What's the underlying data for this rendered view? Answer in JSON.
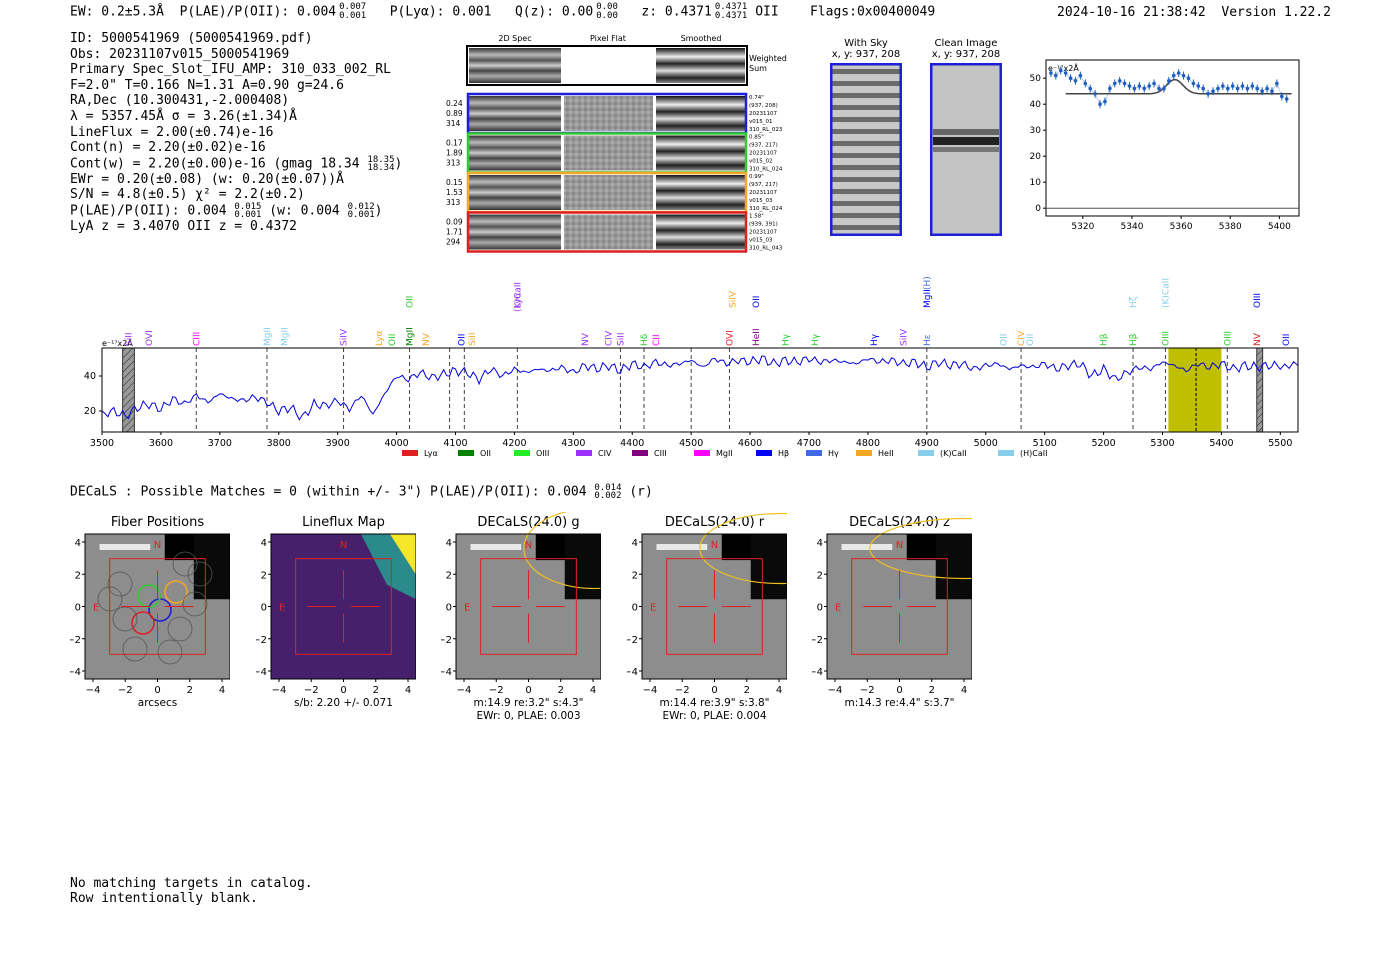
{
  "header": {
    "ew": "EW: 0.2±5.3Å",
    "plae": "P(LAE)/P(OII): 0.004",
    "plae_hi": "0.007",
    "plae_lo": "0.001",
    "plya": "P(Lyα): 0.001",
    "qz": "Q(z): 0.00",
    "qz_hi": "0.00",
    "qz_lo": "0.00",
    "z": "z: 0.4371",
    "z_hi": "0.4371",
    "z_lo": "0.4371",
    "z_line": "OII",
    "flags": "Flags:0x00400049",
    "timestamp": "2024-10-16 21:38:42",
    "version": "Version 1.22.2"
  },
  "info": {
    "l1": "ID: 5000541969 (5000541969.pdf)",
    "l2": "Obs: 20231107v015_5000541969",
    "l3": "Primary Spec_Slot_IFU_AMP: 310_033_002_RL",
    "l4": "F=2.0\"  T=0.166  N=1.31  A=0.90  g=24.6",
    "l5": "RA,Dec (10.300431,-2.000408)",
    "l6": "λ = 5357.45Å  σ = 3.26(±1.34)Å",
    "l7": "LineFlux = 2.00(±0.74)e-16",
    "l8": "Cont(n) = 2.20(±0.02)e-16",
    "l9": "Cont(w) = 2.20(±0.00)e-16 (gmag 18.34",
    "l9_hi": "18.35",
    "l9_lo": "18.34",
    "l9_end": ")",
    "l10": "EWr = 0.20(±0.08) (w: 0.20(±0.07))Å",
    "l11": "S/N = 4.8(±0.5)  χ² = 2.2(±0.2)",
    "l12a": "P(LAE)/P(OII): 0.004",
    "l12_hi": "0.015",
    "l12_lo": "0.001",
    "l12b": "(w: 0.004",
    "l12_hi2": "0.012",
    "l12_lo2": "0.001",
    "l12_end": ")",
    "l13": "LyA z = 3.4070  OII z = 0.4372"
  },
  "cutouts": {
    "col_2d": "2D Spec",
    "col_flat": "Pixel Flat",
    "col_smooth": "Smoothed",
    "weighted_sum": "Weighted",
    "weighted_sum2": "Sum",
    "rows": [
      {
        "color": "#1f1fd6",
        "stats": [
          "0.24",
          "0.89",
          "314"
        ],
        "meta": [
          "0.74\"",
          "(937, 208)",
          "20231107",
          "v015_01",
          "310_RL_023"
        ]
      },
      {
        "color": "#2ecc2e",
        "stats": [
          "0.17",
          "1.89",
          "313"
        ],
        "meta": [
          "0.85\"",
          "(937, 217)",
          "20231107",
          "v015_02",
          "310_RL_024"
        ]
      },
      {
        "color": "#f5a623",
        "stats": [
          "0.15",
          "1.53",
          "313"
        ],
        "meta": [
          "0.99\"",
          "(937, 217)",
          "20231107",
          "v015_03",
          "310_RL_024"
        ]
      },
      {
        "color": "#e02020",
        "stats": [
          "0.09",
          "1.71",
          "294"
        ],
        "meta": [
          "1.58\"",
          "(939, 391)",
          "20231107",
          "v015_03",
          "310_RL_043"
        ]
      }
    ]
  },
  "sky": {
    "with_sky": "With Sky",
    "with_sky_xy": "x, y: 937, 208",
    "clean": "Clean Image",
    "clean_xy": "x, y: 937, 208"
  },
  "chart_data": [
    {
      "type": "line",
      "name": "zoom-spectrum",
      "unit_label": "e⁻¹⁷x2Å",
      "xlim": [
        5305,
        5408
      ],
      "ylim": [
        -3,
        57
      ],
      "xticks": [
        5320,
        5340,
        5360,
        5380,
        5400
      ],
      "yticks": [
        0,
        10,
        20,
        30,
        40,
        50
      ],
      "x": [
        5307,
        5309,
        5311,
        5313,
        5315,
        5317,
        5319,
        5321,
        5323,
        5325,
        5327,
        5329,
        5331,
        5333,
        5335,
        5337,
        5339,
        5341,
        5343,
        5345,
        5347,
        5349,
        5351,
        5353,
        5355,
        5357,
        5359,
        5361,
        5363,
        5365,
        5367,
        5369,
        5371,
        5373,
        5375,
        5377,
        5379,
        5381,
        5383,
        5385,
        5387,
        5389,
        5391,
        5393,
        5395,
        5397,
        5399,
        5401,
        5403
      ],
      "y": [
        52,
        51,
        53,
        52,
        50,
        49,
        51,
        48,
        46,
        44,
        40,
        41,
        46,
        48,
        49,
        48,
        47,
        46,
        47,
        46,
        47,
        48,
        46,
        46,
        49,
        51,
        52,
        51,
        50,
        48,
        47,
        46,
        44,
        45,
        46,
        47,
        46,
        47,
        46,
        47,
        46,
        47,
        46,
        45,
        46,
        45,
        48,
        43,
        42
      ],
      "model_baseline": 44,
      "model_peak": 49.5,
      "model_center": 5357.45
    },
    {
      "type": "line",
      "name": "full-spectrum",
      "unit_label": "e⁻¹⁷x2Å",
      "xlim": [
        3500,
        5530
      ],
      "ylim": [
        8,
        56
      ],
      "xticks": [
        3500,
        3600,
        3700,
        3800,
        3900,
        4000,
        4100,
        4200,
        4300,
        4400,
        4500,
        4600,
        4700,
        4800,
        4900,
        5000,
        5100,
        5200,
        5300,
        5400,
        5500
      ],
      "yticks": [
        20,
        40
      ],
      "x": [
        3500,
        3520,
        3540,
        3560,
        3580,
        3600,
        3620,
        3640,
        3660,
        3680,
        3700,
        3720,
        3740,
        3760,
        3780,
        3800,
        3820,
        3840,
        3860,
        3880,
        3900,
        3920,
        3940,
        3960,
        3980,
        4000,
        4020,
        4040,
        4060,
        4080,
        4100,
        4120,
        4140,
        4160,
        4180,
        4200,
        4220,
        4240,
        4260,
        4280,
        4300,
        4320,
        4340,
        4360,
        4380,
        4400,
        4420,
        4440,
        4460,
        4480,
        4500,
        4520,
        4540,
        4560,
        4580,
        4600,
        4620,
        4640,
        4660,
        4680,
        4700,
        4720,
        4740,
        4760,
        4780,
        4800,
        4820,
        4840,
        4860,
        4880,
        4900,
        4920,
        4940,
        4960,
        4980,
        5000,
        5020,
        5040,
        5060,
        5080,
        5100,
        5120,
        5140,
        5160,
        5180,
        5200,
        5220,
        5240,
        5260,
        5280,
        5300,
        5320,
        5340,
        5360,
        5380,
        5400,
        5420,
        5440,
        5460,
        5480,
        5500,
        5530
      ],
      "y": [
        18,
        20,
        17,
        22,
        24,
        21,
        27,
        24,
        29,
        25,
        30,
        27,
        26,
        28,
        25,
        20,
        22,
        16,
        24,
        23,
        26,
        21,
        29,
        18,
        30,
        40,
        38,
        42,
        39,
        41,
        43,
        42,
        38,
        44,
        40,
        44,
        42,
        44,
        43,
        45,
        42,
        46,
        44,
        46,
        43,
        47,
        45,
        48,
        46,
        47,
        49,
        45,
        50,
        47,
        49,
        48,
        50,
        47,
        49,
        48,
        50,
        48,
        49,
        48,
        47,
        50,
        48,
        49,
        47,
        48,
        45,
        48,
        46,
        47,
        44,
        46,
        47,
        44,
        46,
        45,
        47,
        44,
        46,
        47,
        40,
        44,
        38,
        42,
        45,
        44,
        48,
        46,
        43,
        47,
        45,
        47,
        44,
        46,
        45,
        46,
        46,
        46
      ],
      "annotations": [
        {
          "x": 3545,
          "label": "SiII",
          "color": "#9b30ff",
          "side": "low"
        },
        {
          "x": 3580,
          "label": "OVI",
          "color": "#9b30ff",
          "side": "low"
        },
        {
          "x": 3660,
          "label": "CIII",
          "color": "#ff00ff",
          "side": "low"
        },
        {
          "x": 3780,
          "label": "MgII",
          "color": "#87ceeb",
          "side": "low"
        },
        {
          "x": 3810,
          "label": "MgII",
          "color": "#87ceeb",
          "side": "low"
        },
        {
          "x": 3910,
          "label": "SiIV",
          "color": "#9b30ff",
          "side": "low"
        },
        {
          "x": 3970,
          "label": "Lyα",
          "color": "#f5a623",
          "side": "low"
        },
        {
          "x": 3992,
          "label": "OII",
          "color": "#2ecc2e",
          "side": "low"
        },
        {
          "x": 4022,
          "label": "MgII",
          "color": "#008000",
          "side": "low"
        },
        {
          "x": 4022,
          "label": "OII",
          "color": "#2ecc2e",
          "side": "high"
        },
        {
          "x": 4050,
          "label": "NV",
          "color": "#f5a623",
          "side": "low"
        },
        {
          "x": 4110,
          "label": "OII",
          "color": "#0000ff",
          "side": "low"
        },
        {
          "x": 4128,
          "label": "SiII",
          "color": "#f5a623",
          "side": "low"
        },
        {
          "x": 4205,
          "label": "(K)CaII",
          "color": "#9b30ff",
          "side": "mid"
        },
        {
          "x": 4205,
          "label": "Lyα",
          "color": "#9b30ff",
          "side": "high"
        },
        {
          "x": 4320,
          "label": "NV",
          "color": "#9b30ff",
          "side": "low"
        },
        {
          "x": 4360,
          "label": "CIV",
          "color": "#9b30ff",
          "side": "low"
        },
        {
          "x": 4380,
          "label": "SiII",
          "color": "#9b30ff",
          "side": "low"
        },
        {
          "x": 4420,
          "label": "Hδ",
          "color": "#2ecc2e",
          "side": "low"
        },
        {
          "x": 4440,
          "label": "CII",
          "color": "#ff00ff",
          "side": "low"
        },
        {
          "x": 4565,
          "label": "OVI",
          "color": "#e02020",
          "side": "low"
        },
        {
          "x": 4570,
          "label": "SiIV",
          "color": "#f5a623",
          "side": "high"
        },
        {
          "x": 4610,
          "label": "OII",
          "color": "#0000ff",
          "side": "high"
        },
        {
          "x": 4610,
          "label": "HeII",
          "color": "#800080",
          "side": "low"
        },
        {
          "x": 4660,
          "label": "Hγ",
          "color": "#2ecc2e",
          "side": "low"
        },
        {
          "x": 4710,
          "label": "Hγ",
          "color": "#2ecc2e",
          "side": "low"
        },
        {
          "x": 4810,
          "label": "Hγ",
          "color": "#0000ff",
          "side": "low"
        },
        {
          "x": 4860,
          "label": "SiIV",
          "color": "#9b30ff",
          "side": "low"
        },
        {
          "x": 4900,
          "label": "Hε",
          "color": "#4169e1",
          "side": "low"
        },
        {
          "x": 4900,
          "label": "MgII",
          "color": "#0000ff",
          "side": "high"
        },
        {
          "x": 4900,
          "label": "(H)",
          "color": "#4169e1",
          "side": "high2"
        },
        {
          "x": 5030,
          "label": "OII",
          "color": "#87ceeb",
          "side": "low"
        },
        {
          "x": 5060,
          "label": "CIV",
          "color": "#f5a623",
          "side": "low"
        },
        {
          "x": 5075,
          "label": "OII",
          "color": "#87ceeb",
          "side": "low"
        },
        {
          "x": 5200,
          "label": "Hβ",
          "color": "#2ecc2e",
          "side": "low"
        },
        {
          "x": 5250,
          "label": "Hβ",
          "color": "#2ecc2e",
          "side": "low"
        },
        {
          "x": 5250,
          "label": "Hζ",
          "color": "#87ceeb",
          "side": "high"
        },
        {
          "x": 5305,
          "label": "OIII",
          "color": "#2ecc2e",
          "side": "low"
        },
        {
          "x": 5305,
          "label": "(K)CaII",
          "color": "#87ceeb",
          "side": "high"
        },
        {
          "x": 5410,
          "label": "OIII",
          "color": "#2ecc2e",
          "side": "low"
        },
        {
          "x": 5460,
          "label": "NV",
          "color": "#e02020",
          "side": "low"
        },
        {
          "x": 5460,
          "label": "OIII",
          "color": "#0000ff",
          "side": "high"
        },
        {
          "x": 5510,
          "label": "OII",
          "color": "#0000ff",
          "side": "low"
        }
      ],
      "dashed_lines": [
        3660,
        3780,
        3910,
        4022,
        4090,
        4115,
        4205,
        4380,
        4420,
        4500,
        4565,
        4900,
        5060,
        5250,
        5305,
        5410
      ],
      "highlight_range": [
        5310,
        5400
      ],
      "highlight_center": 5357,
      "hatch_ranges": [
        [
          3535,
          3555
        ],
        [
          5460,
          5470
        ]
      ]
    }
  ],
  "legend": [
    {
      "label": "Lyα",
      "color": "#e02020"
    },
    {
      "label": "OII",
      "color": "#008000"
    },
    {
      "label": "OIII",
      "color": "#22ee22"
    },
    {
      "label": "CIV",
      "color": "#9b30ff"
    },
    {
      "label": "CIII",
      "color": "#800080"
    },
    {
      "label": "MgII",
      "color": "#ff00ff"
    },
    {
      "label": "Hβ",
      "color": "#0000ff"
    },
    {
      "label": "Hγ",
      "color": "#4169e1"
    },
    {
      "label": "HeII",
      "color": "#f5a623"
    },
    {
      "label": "(K)CaII",
      "color": "#87ceeb"
    },
    {
      "label": "(H)CaII",
      "color": "#87ceeb"
    }
  ],
  "decals": {
    "title": "DECaLS : Possible Matches = 0 (within +/- 3\")  P(LAE)/P(OII): 0.004",
    "hi": "0.014",
    "lo": "0.002",
    "end": "(r)"
  },
  "panels": [
    {
      "title": "Fiber Positions",
      "caption1": "arcsecs",
      "caption2": ""
    },
    {
      "title": "Lineflux Map",
      "caption1": "s/b: 2.20 +/- 0.071",
      "caption2": ""
    },
    {
      "title": "DECaLS(24.0) g",
      "caption1": "m:14.9  re:3.2\"  s:4.3\"",
      "caption2": "EWr: 0, PLAE: 0.003"
    },
    {
      "title": "DECaLS(24.0) r",
      "caption1": "m:14.4  re:3.9\"  s:3.8\"",
      "caption2": "EWr: 0, PLAE: 0.004"
    },
    {
      "title": "DECaLS(24.0) z",
      "caption1": "m:14.3  re:4.4\"  s:3.7\"",
      "caption2": ""
    }
  ],
  "panel_axis": {
    "ticks": [
      "−4",
      "−2",
      "0",
      "2",
      "4"
    ],
    "yticks": [
      "4",
      "2",
      "0",
      "−2",
      "−4"
    ],
    "n": "N",
    "e": "E"
  },
  "footer": {
    "l1": "No matching targets in catalog.",
    "l2": "Row intentionally blank."
  }
}
